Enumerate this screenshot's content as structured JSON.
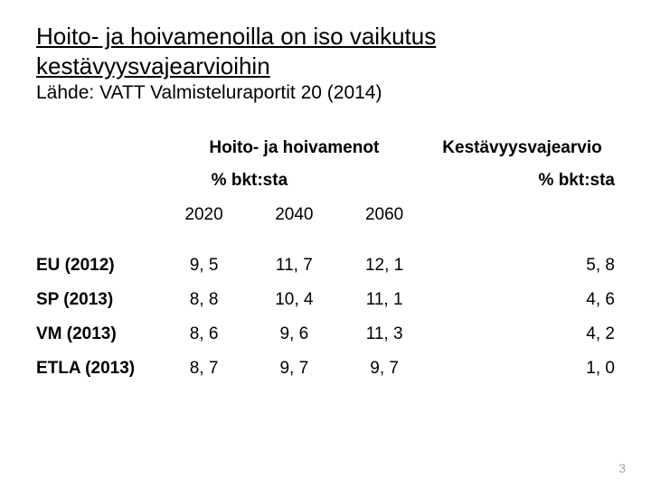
{
  "title": "Hoito- ja hoivamenoilla on iso vaikutus kestävyysvajearvioihin",
  "subtitle": "Lähde: VATT Valmisteluraportit 20 (2014)",
  "table": {
    "group_headers": [
      "Hoito- ja hoivamenot",
      "Kestävyysvajearvio"
    ],
    "sub_headers": [
      "% bkt:sta",
      "% bkt:sta"
    ],
    "year_headers": [
      "2020",
      "2040",
      "2060"
    ],
    "rows": [
      {
        "label": "EU (2012)",
        "y2020": "9, 5",
        "y2040": "11, 7",
        "y2060": "12, 1",
        "gap": "5, 8"
      },
      {
        "label": "SP (2013)",
        "y2020": "8, 8",
        "y2040": "10, 4",
        "y2060": "11, 1",
        "gap": "4, 6"
      },
      {
        "label": "VM (2013)",
        "y2020": "8, 6",
        "y2040": "9, 6",
        "y2060": "11, 3",
        "gap": "4, 2"
      },
      {
        "label": "ETLA (2013)",
        "y2020": "8, 7",
        "y2040": "9, 7",
        "y2060": "9, 7",
        "gap": "1, 0"
      }
    ]
  },
  "page_number": "3",
  "colors": {
    "background": "#ffffff",
    "text": "#000000",
    "page_number": "#a6a6a6"
  }
}
